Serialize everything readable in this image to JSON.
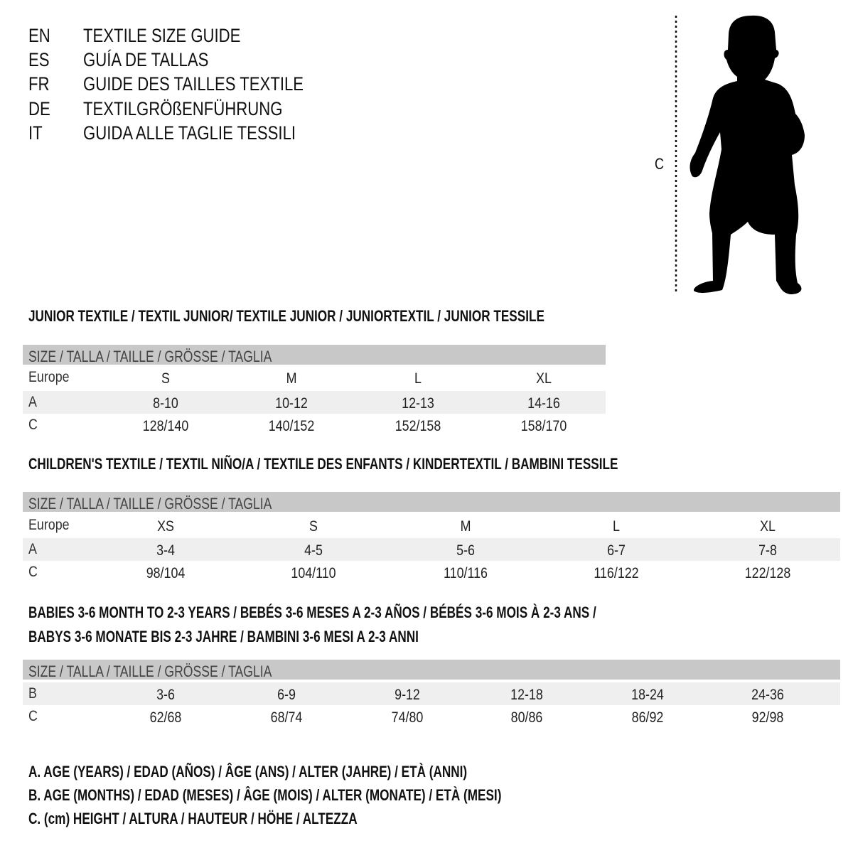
{
  "titles": [
    {
      "code": "EN",
      "text": "TEXTILE SIZE GUIDE"
    },
    {
      "code": "ES",
      "text": "GUÍA DE TALLAS"
    },
    {
      "code": "FR",
      "text": "GUIDE DES TAILLES TEXTILE"
    },
    {
      "code": "DE",
      "text": "TEXTILGRÖßENFÜHRUNG"
    },
    {
      "code": "IT",
      "text": "GUIDA ALLE TAGLIE TESSILI"
    }
  ],
  "figure": {
    "measure_label": "C"
  },
  "sections": [
    {
      "heading": [
        "JUNIOR TEXTILE / TEXTIL JUNIOR/ TEXTILE JUNIOR / JUNIORTEXTIL / JUNIOR TESSILE"
      ],
      "header": "SIZE / TALLA / TAILLE / GRÖSSE / TAGLIA",
      "rows": [
        {
          "label": "Europe",
          "values": [
            "S",
            "M",
            "L",
            "XL"
          ]
        },
        {
          "label": "A",
          "values": [
            "8-10",
            "10-12",
            "12-13",
            "14-16"
          ]
        },
        {
          "label": "C",
          "values": [
            "128/140",
            "140/152",
            "152/158",
            "158/170"
          ]
        }
      ]
    },
    {
      "heading": [
        "CHILDREN'S TEXTILE / TEXTIL NIÑO/A / TEXTILE DES ENFANTS / KINDERTEXTIL / BAMBINI TESSILE"
      ],
      "header": "SIZE / TALLA / TAILLE / GRÖSSE / TAGLIA",
      "rows": [
        {
          "label": "Europe",
          "values": [
            "XS",
            "S",
            "M",
            "L",
            "XL"
          ]
        },
        {
          "label": "A",
          "values": [
            "3-4",
            "4-5",
            "5-6",
            "6-7",
            "7-8"
          ]
        },
        {
          "label": "C",
          "values": [
            "98/104",
            "104/110",
            "110/116",
            "116/122",
            "122/128"
          ]
        }
      ]
    },
    {
      "heading": [
        "BABIES 3-6 MONTH TO 2-3 YEARS / BEBÉS 3-6 MESES A 2-3 AÑOS / BÉBÉS 3-6 MOIS À 2-3 ANS /",
        "BABYS 3-6 MONATE BIS 2-3 JAHRE / BAMBINI 3-6 MESI A 2-3 ANNI"
      ],
      "header": "SIZE / TALLA / TAILLE / GRÖSSE / TAGLIA",
      "rows": [
        {
          "label": "B",
          "values": [
            "3-6",
            "6-9",
            "9-12",
            "12-18",
            "18-24",
            "24-36"
          ]
        },
        {
          "label": "C",
          "values": [
            "62/68",
            "68/74",
            "74/80",
            "80/86",
            "86/92",
            "92/98"
          ]
        }
      ]
    }
  ],
  "legend": [
    "A. AGE (YEARS) / EDAD (AÑOS) / ÂGE (ANS) / ALTER (JAHRE) / ETÀ (ANNI)",
    "B. AGE (MONTHS) / EDAD (MESES) / ÂGE (MOIS) / ALTER (MONATE) / ETÀ (MESI)",
    "C. (cm) HEIGHT / ALTURA / HAUTEUR / HÖHE / ALTEZZA"
  ],
  "colors": {
    "header_band": "#c8c8c8",
    "row_band": "#efefef",
    "text": "#111111"
  }
}
